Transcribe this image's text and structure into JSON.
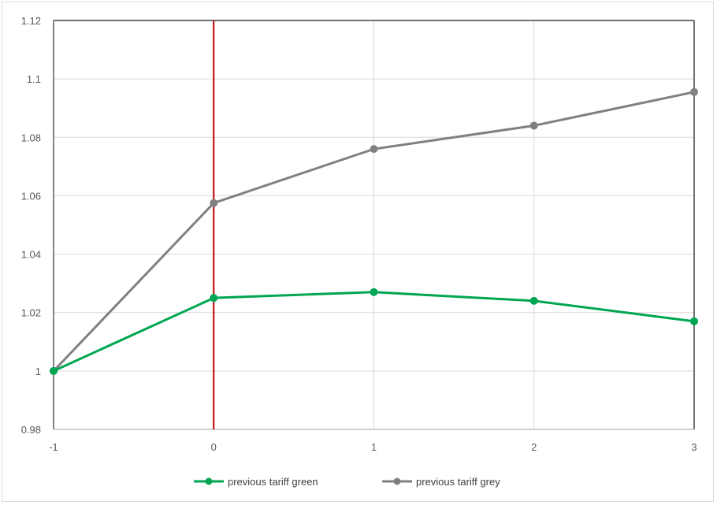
{
  "chart_data": {
    "type": "line",
    "x": [
      -1,
      0,
      1,
      2,
      3
    ],
    "x_tick_labels": [
      "-1",
      "0",
      "1",
      "2",
      "3"
    ],
    "y_tick_labels": [
      "0.98",
      "1",
      "1.02",
      "1.04",
      "1.06",
      "1.08",
      "1.1",
      "1.12"
    ],
    "ylim": [
      0.98,
      1.12
    ],
    "xlim": [
      -1,
      3
    ],
    "grid": true,
    "legend_position": "bottom",
    "reference_line": {
      "x": 0,
      "color": "#c00000"
    },
    "series": [
      {
        "name": "previous tariff green",
        "color": "#00a651",
        "values": [
          1.0,
          1.025,
          1.027,
          1.024,
          1.017
        ]
      },
      {
        "name": "previous tariff grey",
        "color": "#808080",
        "values": [
          1.0,
          1.0575,
          1.076,
          1.084,
          1.0955
        ]
      }
    ]
  }
}
